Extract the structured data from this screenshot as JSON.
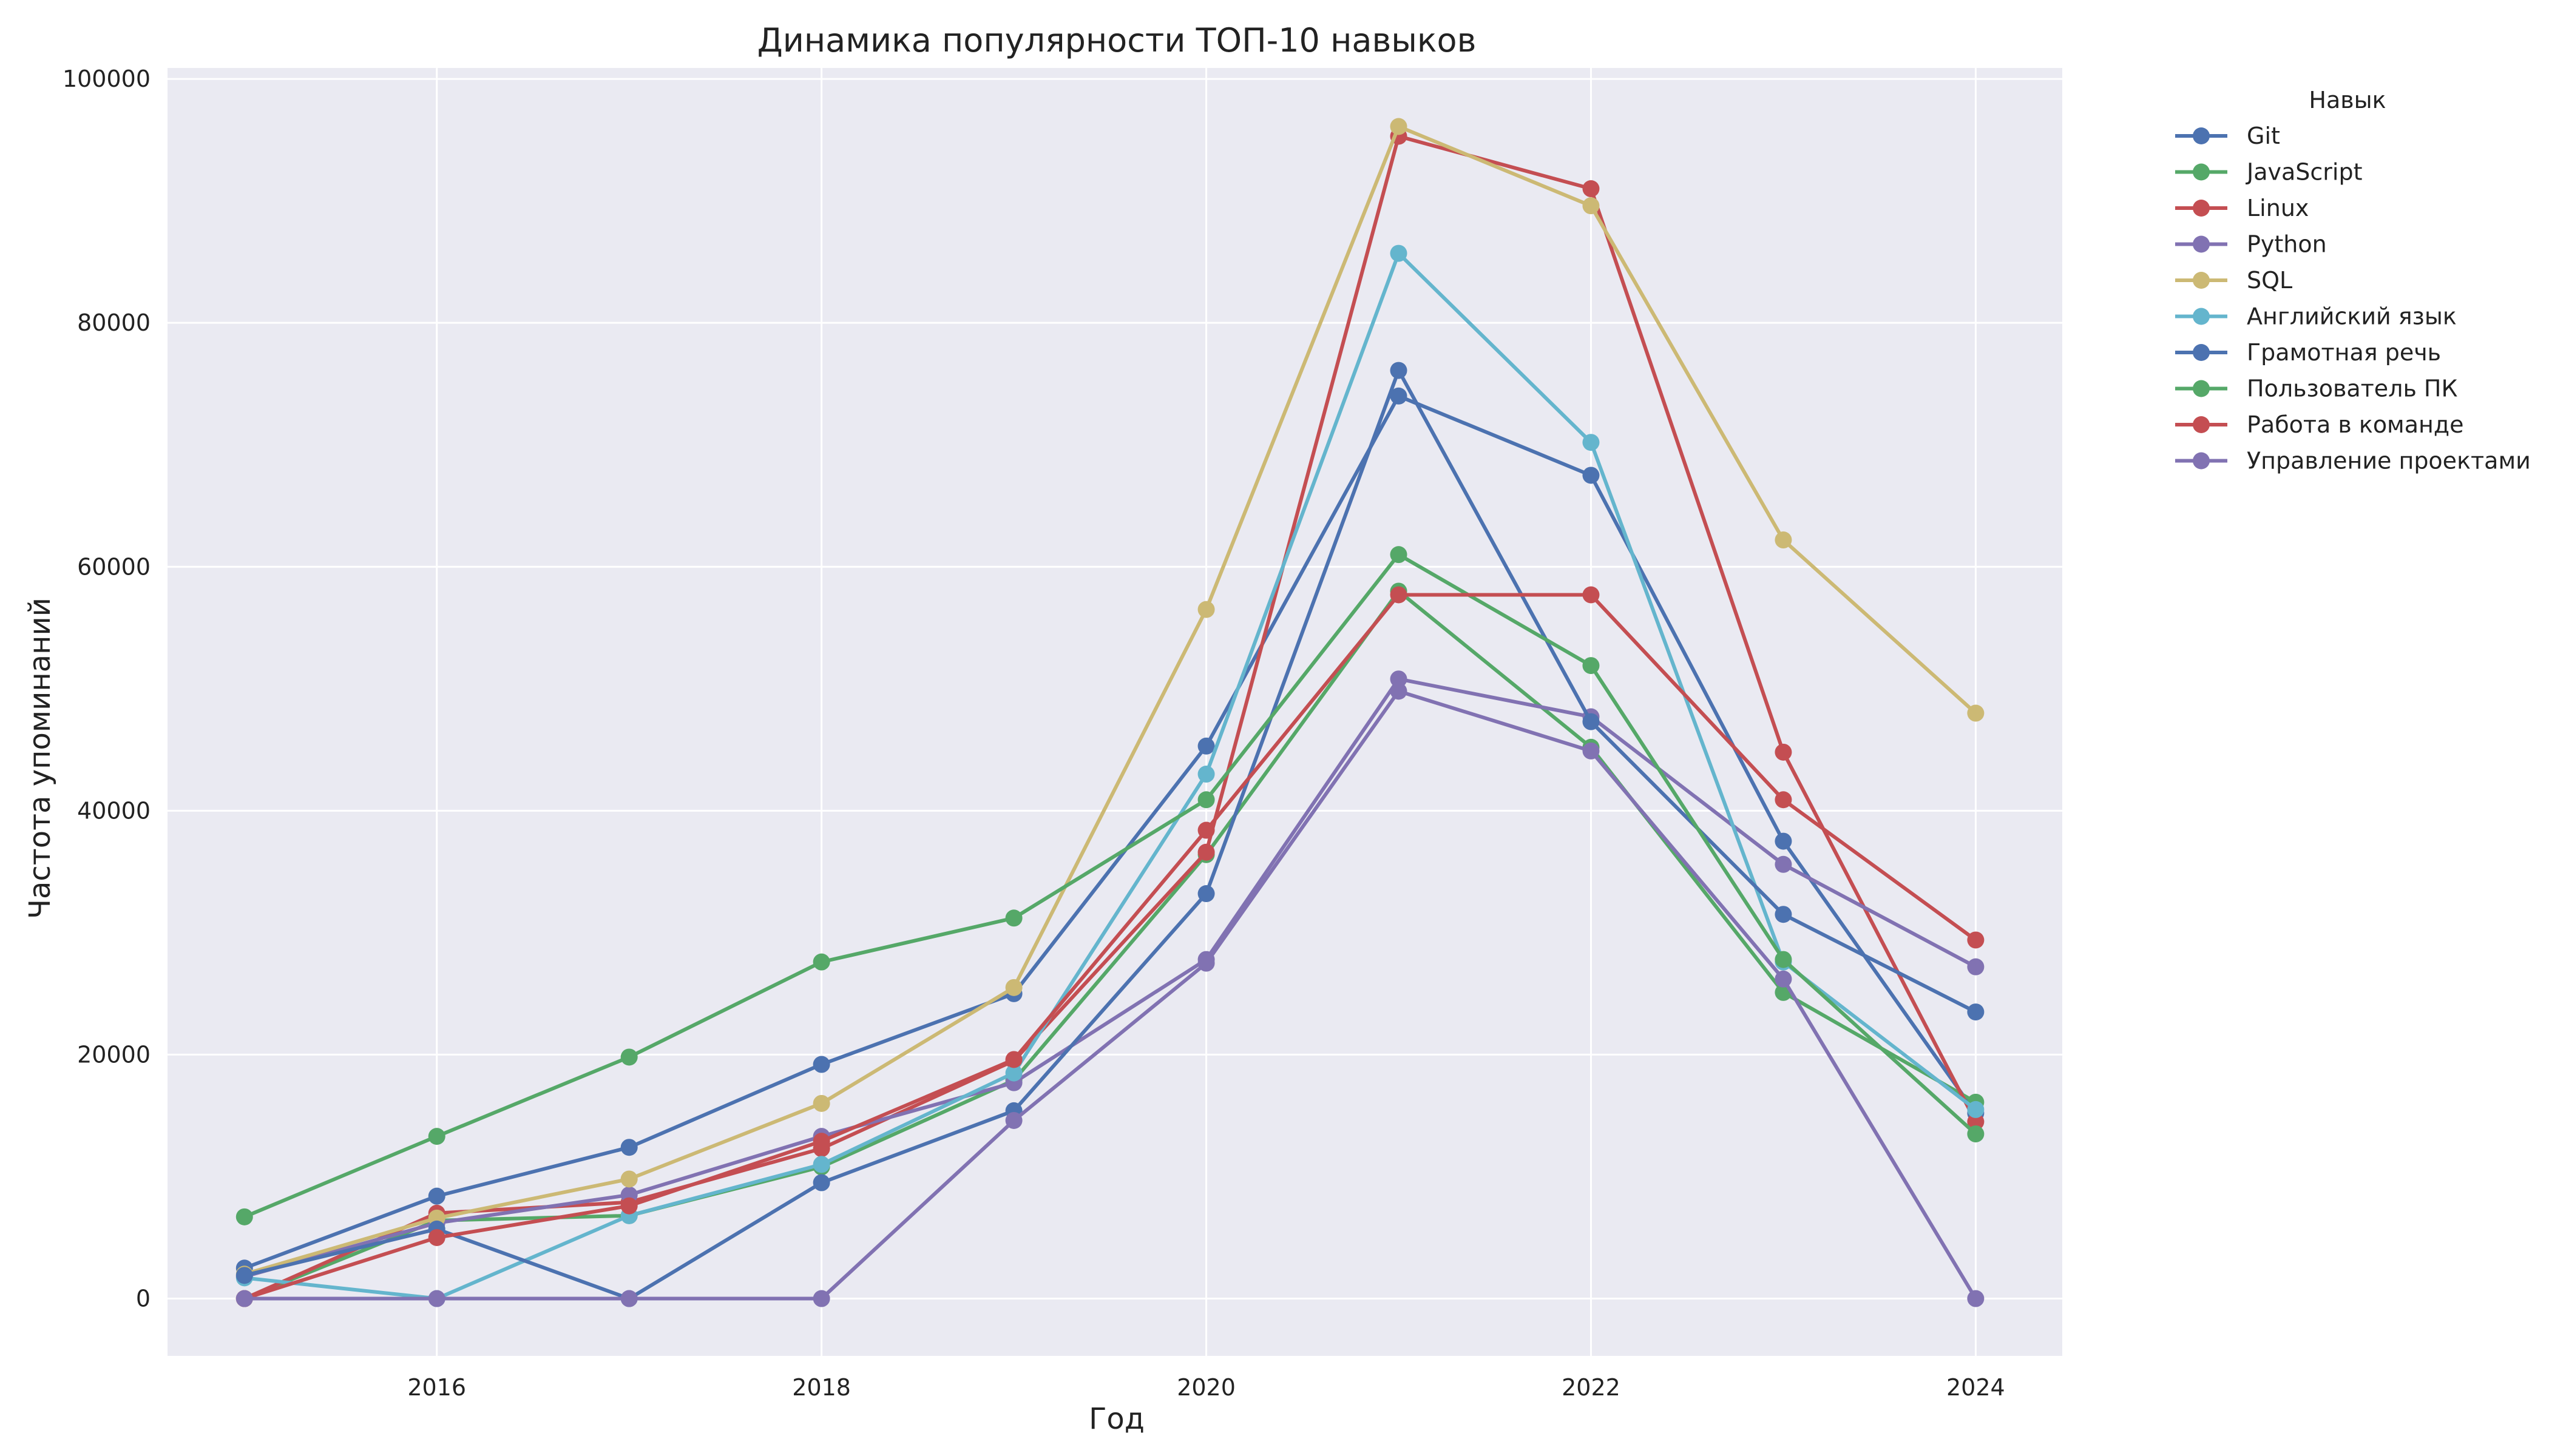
{
  "chart_data": {
    "type": "line",
    "title": "Динамика популярности ТОП-10 навыков",
    "xlabel": "Год",
    "ylabel": "Частота упоминаний",
    "x": [
      2015,
      2016,
      2017,
      2018,
      2019,
      2020,
      2021,
      2022,
      2023,
      2024
    ],
    "xlim": [
      2014.6,
      2024.45
    ],
    "ylim": [
      -4700,
      100900
    ],
    "xticks": [
      2016,
      2018,
      2020,
      2022,
      2024
    ],
    "xtick_labels": [
      "2016",
      "2018",
      "2020",
      "2022",
      "2024"
    ],
    "yticks": [
      0,
      20000,
      40000,
      60000,
      80000,
      100000
    ],
    "ytick_labels": [
      "0",
      "20000",
      "40000",
      "60000",
      "80000",
      "100000"
    ],
    "grid": true,
    "legend": {
      "title": "Навык",
      "placement": "outside-right"
    },
    "series": [
      {
        "name": "Git",
        "color": "#4C72B0",
        "values": [
          2500,
          8400,
          12400,
          19200,
          25000,
          45300,
          74000,
          67500,
          37500,
          15200
        ]
      },
      {
        "name": "JavaScript",
        "color": "#55A868",
        "values": [
          0,
          6400,
          6800,
          10800,
          17900,
          36400,
          58000,
          45200,
          25100,
          16100
        ]
      },
      {
        "name": "Linux",
        "color": "#C44E52",
        "values": [
          0,
          7000,
          7900,
          12300,
          19500,
          36600,
          95300,
          91000,
          44800,
          14500
        ]
      },
      {
        "name": "Python",
        "color": "#8172B2",
        "values": [
          1800,
          6200,
          8500,
          13300,
          17700,
          27800,
          50800,
          47700,
          35600,
          27200
        ]
      },
      {
        "name": "SQL",
        "color": "#CCB974",
        "values": [
          2000,
          6600,
          9800,
          16000,
          25500,
          56500,
          96100,
          89600,
          62200,
          48000
        ]
      },
      {
        "name": "Английский язык",
        "color": "#64B5CD",
        "values": [
          1700,
          0,
          6800,
          11000,
          18500,
          43000,
          85700,
          70200,
          27600,
          15500
        ]
      },
      {
        "name": "Грамотная речь",
        "color": "#4C72B0",
        "values": [
          1900,
          5700,
          0,
          9500,
          15400,
          33200,
          76100,
          47300,
          31500,
          23500
        ]
      },
      {
        "name": "Пользователь ПК",
        "color": "#55A868",
        "values": [
          6700,
          13300,
          19800,
          27600,
          31200,
          40900,
          61000,
          51900,
          27800,
          13500
        ]
      },
      {
        "name": "Работа в команде",
        "color": "#C44E52",
        "values": [
          0,
          5000,
          7600,
          12900,
          19600,
          38400,
          57700,
          57700,
          40900,
          29400
        ]
      },
      {
        "name": "Управление проектами",
        "color": "#8172B2",
        "values": [
          0,
          0,
          0,
          0,
          14600,
          27500,
          49800,
          44900,
          26200,
          0
        ]
      }
    ]
  }
}
